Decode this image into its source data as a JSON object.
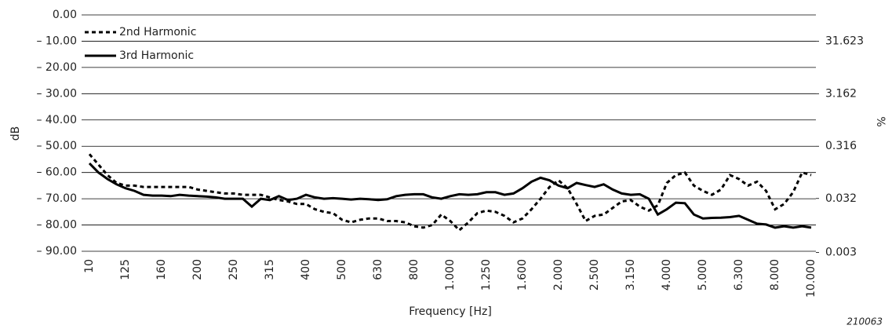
{
  "chart_data": {
    "type": "line",
    "xlabel": "Frequency [Hz]",
    "ylabel": "dB",
    "y2label": "%",
    "footnote": "210063",
    "categories": [
      "10",
      null,
      null,
      null,
      "125",
      null,
      null,
      null,
      "160",
      null,
      null,
      null,
      "200",
      null,
      null,
      null,
      "250",
      null,
      null,
      null,
      "315",
      null,
      null,
      null,
      "400",
      null,
      null,
      null,
      "500",
      null,
      null,
      null,
      "630",
      null,
      null,
      null,
      "800",
      null,
      null,
      null,
      "1.000",
      null,
      null,
      null,
      "1.250",
      null,
      null,
      null,
      "1.600",
      null,
      null,
      null,
      "2.000",
      null,
      null,
      null,
      "2.500",
      null,
      null,
      null,
      "3.150",
      null,
      null,
      null,
      "4.000",
      null,
      null,
      null,
      "5.000",
      null,
      null,
      null,
      "6.300",
      null,
      null,
      null,
      "8.000",
      null,
      null,
      null,
      "10.000"
    ],
    "series": [
      {
        "name": "2nd Harmonic",
        "color": "#000000",
        "line_style": "dashed",
        "values": [
          -53,
          -57,
          -61,
          -64,
          -65,
          -65,
          -65.5,
          -65.5,
          -65.5,
          -65.5,
          -65.5,
          -65.5,
          -66.5,
          -67,
          -67.5,
          -68,
          -68,
          -68.5,
          -68.5,
          -68.5,
          -69.5,
          -70.5,
          -71,
          -72,
          -72,
          -74,
          -75,
          -75.5,
          -78,
          -79,
          -78,
          -77.5,
          -77.5,
          -78.5,
          -78.5,
          -79,
          -80.5,
          -81,
          -80,
          -76,
          -78.5,
          -82,
          -79,
          -75.5,
          -74.5,
          -75,
          -76.5,
          -79,
          -77.5,
          -74,
          -70,
          -65.5,
          -63,
          -66,
          -72,
          -78.5,
          -76.5,
          -76,
          -73.5,
          -71,
          -70.5,
          -73,
          -74.5,
          -72.5,
          -64,
          -61,
          -60,
          -65,
          -67,
          -68.5,
          -66.5,
          -61,
          -62.5,
          -65,
          -63.5,
          -67,
          -74,
          -72,
          -67.5,
          -60,
          -61
        ]
      },
      {
        "name": "3rd Harmonic",
        "color": "#000000",
        "line_style": "solid",
        "values": [
          -56.5,
          -60,
          -62.5,
          -64.5,
          -66,
          -67,
          -68.5,
          -68.8,
          -68.8,
          -69,
          -68.5,
          -68.8,
          -69,
          -69.2,
          -69.5,
          -70,
          -70,
          -70,
          -73,
          -70,
          -70.5,
          -69,
          -70.5,
          -70,
          -68.5,
          -69.5,
          -70,
          -69.8,
          -70,
          -70.3,
          -70,
          -70.2,
          -70.5,
          -70.2,
          -69,
          -68.5,
          -68.3,
          -68.3,
          -69.5,
          -70,
          -69,
          -68.3,
          -68.5,
          -68.3,
          -67.5,
          -67.5,
          -68.5,
          -68,
          -66,
          -63.5,
          -62,
          -63,
          -65,
          -66,
          -64,
          -64.8,
          -65.5,
          -64.5,
          -66.5,
          -68,
          -68.5,
          -68.3,
          -70,
          -76,
          -74,
          -71.5,
          -71.7,
          -76,
          -77.5,
          -77.3,
          -77.2,
          -77,
          -76.5,
          -78,
          -79.5,
          -79.8,
          -81,
          -80.5,
          -81,
          -80.5,
          -81
        ]
      }
    ],
    "ylim": [
      -90,
      0
    ],
    "yticks": [
      {
        "value": 0,
        "label": "0.00"
      },
      {
        "value": -10,
        "label": "– 10.00"
      },
      {
        "value": -20,
        "label": "– 20.00"
      },
      {
        "value": -30,
        "label": "– 30.00"
      },
      {
        "value": -40,
        "label": "– 40.00"
      },
      {
        "value": -50,
        "label": "– 50.00"
      },
      {
        "value": -60,
        "label": "– 60.00"
      },
      {
        "value": -70,
        "label": "– 70.00"
      },
      {
        "value": -80,
        "label": "– 80.00"
      },
      {
        "value": -90,
        "label": "– 90.00"
      }
    ],
    "y2lim": [
      0.0031623,
      100
    ],
    "y2scale": "log",
    "y2ticks": [
      31.623,
      3.162,
      0.316,
      0.032,
      0.003
    ],
    "grid": true,
    "legend": "upper left"
  }
}
